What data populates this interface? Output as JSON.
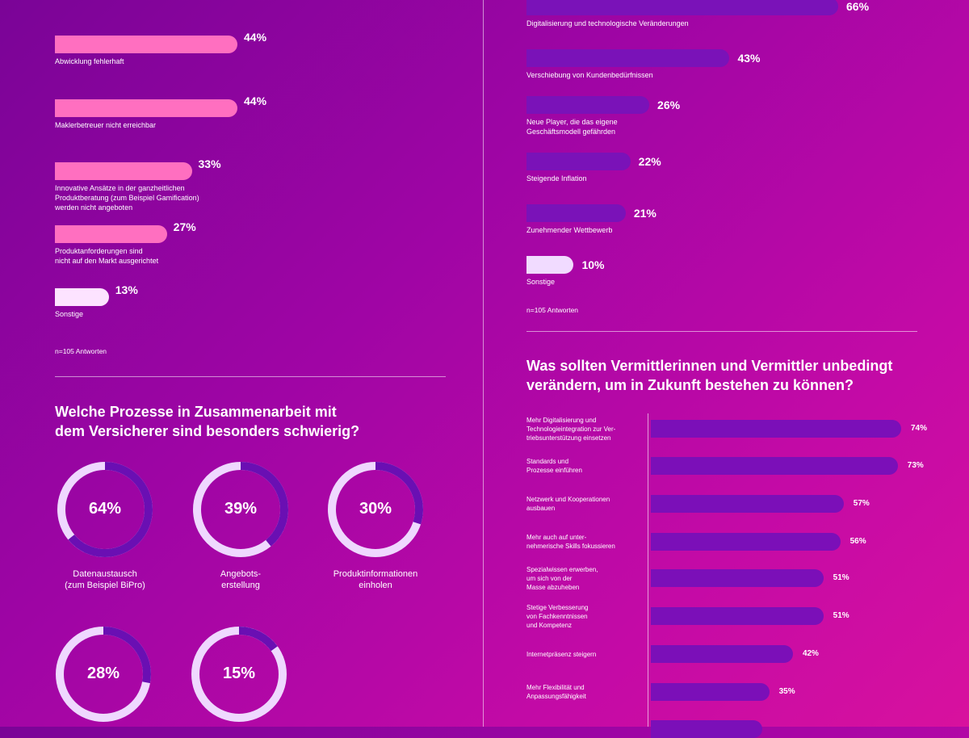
{
  "left_top": {
    "items": [
      {
        "label": "Abwicklung fehlerhaft",
        "value": 44,
        "display": "44%"
      },
      {
        "label": "Maklerbetreuer nicht erreichbar",
        "value": 44,
        "display": "44%"
      },
      {
        "label": "Innovative Ansätze in der ganzheitlichen\nProduktberatung (zum Beispiel Gamification)\nwerden nicht angeboten",
        "value": 33,
        "display": "33%"
      },
      {
        "label": "Produktanforderungen sind\nnicht auf den Markt ausgerichtet",
        "value": 27,
        "display": "27%"
      },
      {
        "label": "Sonstige",
        "value": 13,
        "display": "13%"
      }
    ],
    "note": "n=105 Antworten",
    "color_main": "#ff6fc0",
    "color_other": "#fde3ff"
  },
  "left_bottom": {
    "heading": "Welche Prozesse in Zusammenarbeit mit\ndem Versicherer sind besonders schwierig?",
    "donuts": [
      {
        "label": "Datenaustausch\n(zum Beispiel BiPro)",
        "value": 64,
        "display": "64%"
      },
      {
        "label": "Angebots-\nerstellung",
        "value": 39,
        "display": "39%"
      },
      {
        "label": "Produktinformationen\neinholen",
        "value": 30,
        "display": "30%"
      },
      {
        "label": "",
        "value": 28,
        "display": "28%"
      },
      {
        "label": "",
        "value": 15,
        "display": "15%"
      }
    ],
    "ring_color": "#6a0fb3",
    "track_color": "#efd8ff"
  },
  "right_top": {
    "items": [
      {
        "label": "Digitalisierung und technologische Veränderungen",
        "value": 66,
        "display": "66%"
      },
      {
        "label": "Verschiebung von Kundenbedürfnissen",
        "value": 43,
        "display": "43%"
      },
      {
        "label": "Neue Player, die das eigene\nGeschäftsmodell gefährden",
        "value": 26,
        "display": "26%"
      },
      {
        "label": "Steigende Inflation",
        "value": 22,
        "display": "22%"
      },
      {
        "label": "Zunehmender Wettbewerb",
        "value": 21,
        "display": "21%"
      },
      {
        "label": "Sonstige",
        "value": 10,
        "display": "10%"
      }
    ],
    "note": "n=105 Antworten",
    "color_main": "#7a12b8",
    "color_other": "#f1dbff"
  },
  "right_bottom": {
    "heading": "Was sollten Vermittlerinnen und Vermittler unbedingt\nverändern, um in Zukunft bestehen zu können?",
    "items": [
      {
        "label": "Mehr Digitalisierung und\nTechnologieintegration zur Ver-\ntriebsunterstützung einsetzen",
        "value": 74,
        "display": "74%"
      },
      {
        "label": "Standards und\nProzesse einführen",
        "value": 73,
        "display": "73%"
      },
      {
        "label": "Netzwerk und Kooperationen\nausbauen",
        "value": 57,
        "display": "57%"
      },
      {
        "label": "Mehr auch auf unter-\nnehmerische Skills fokussieren",
        "value": 56,
        "display": "56%"
      },
      {
        "label": "Spezialwissen erwerben,\num sich von der\nMasse abzuheben",
        "value": 51,
        "display": "51%"
      },
      {
        "label": "Stetige Verbesserung\nvon Fachkenntnissen\nund Kompetenz",
        "value": 51,
        "display": "51%"
      },
      {
        "label": "Internetpräsenz steigern",
        "value": 42,
        "display": "42%"
      },
      {
        "label": "Mehr Flexibilität und\nAnpassungsfähigkeit",
        "value": 35,
        "display": "35%"
      },
      {
        "label": "",
        "value": 33,
        "display": ""
      }
    ]
  },
  "chart_data": [
    {
      "type": "bar",
      "orientation": "horizontal",
      "categories": [
        "Abwicklung fehlerhaft",
        "Maklerbetreuer nicht erreichbar",
        "Innovative Ansätze in der ganzheitlichen Produktberatung (zum Beispiel Gamification) werden nicht angeboten",
        "Produktanforderungen sind nicht auf den Markt ausgerichtet",
        "Sonstige"
      ],
      "values": [
        44,
        44,
        33,
        27,
        13
      ],
      "unit": "%"
    },
    {
      "type": "pie",
      "title": "Welche Prozesse in Zusammenarbeit mit dem Versicherer sind besonders schwierig?",
      "categories": [
        "Datenaustausch (zum Beispiel BiPro)",
        "Angebots-erstellung",
        "Produktinformationen einholen",
        "",
        ""
      ],
      "values": [
        64,
        39,
        30,
        28,
        15
      ],
      "unit": "%"
    },
    {
      "type": "bar",
      "orientation": "horizontal",
      "categories": [
        "Digitalisierung und technologische Veränderungen",
        "Verschiebung von Kundenbedürfnissen",
        "Neue Player, die das eigene Geschäftsmodell gefährden",
        "Steigende Inflation",
        "Zunehmender Wettbewerb",
        "Sonstige"
      ],
      "values": [
        66,
        43,
        26,
        22,
        21,
        10
      ],
      "unit": "%"
    },
    {
      "type": "bar",
      "orientation": "horizontal",
      "title": "Was sollten Vermittlerinnen und Vermittler unbedingt verändern, um in Zukunft bestehen zu können?",
      "categories": [
        "Mehr Digitalisierung und Technologieintegration zur Vertriebsunterstützung einsetzen",
        "Standards und Prozesse einführen",
        "Netzwerk und Kooperationen ausbauen",
        "Mehr auch auf unternehmerische Skills fokussieren",
        "Spezialwissen erwerben, um sich von der Masse abzuheben",
        "Stetige Verbesserung von Fachkenntnissen und Kompetenz",
        "Internetpräsenz steigern",
        "Mehr Flexibilität und Anpassungsfähigkeit",
        ""
      ],
      "values": [
        74,
        73,
        57,
        56,
        51,
        51,
        42,
        35,
        33
      ],
      "unit": "%"
    }
  ]
}
